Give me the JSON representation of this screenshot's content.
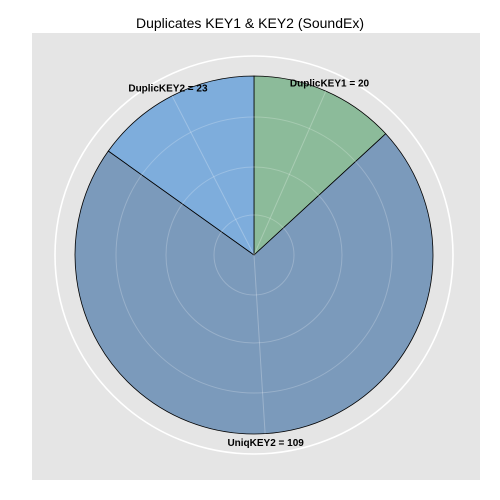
{
  "chart_data": {
    "type": "pie",
    "title": "Duplicates KEY1 & KEY2 (SoundEx)",
    "slices": [
      {
        "category": "DuplicKEY1",
        "value": 20,
        "label": "DuplicKEY1 = 20",
        "color": "#8cbb9a"
      },
      {
        "category": "UniqKEY2",
        "value": 109,
        "label": "UniqKEY2 = 109",
        "color": "#7b9abb"
      },
      {
        "category": "DuplicKEY2",
        "value": 23,
        "label": "DuplicKEY2 = 23",
        "color": "#7eaddc"
      }
    ],
    "legend": "none",
    "grid": true,
    "colors": {
      "panel_background": "#e5e5e5",
      "grid_line": "#ffffff",
      "slice_border": "#000000"
    }
  }
}
